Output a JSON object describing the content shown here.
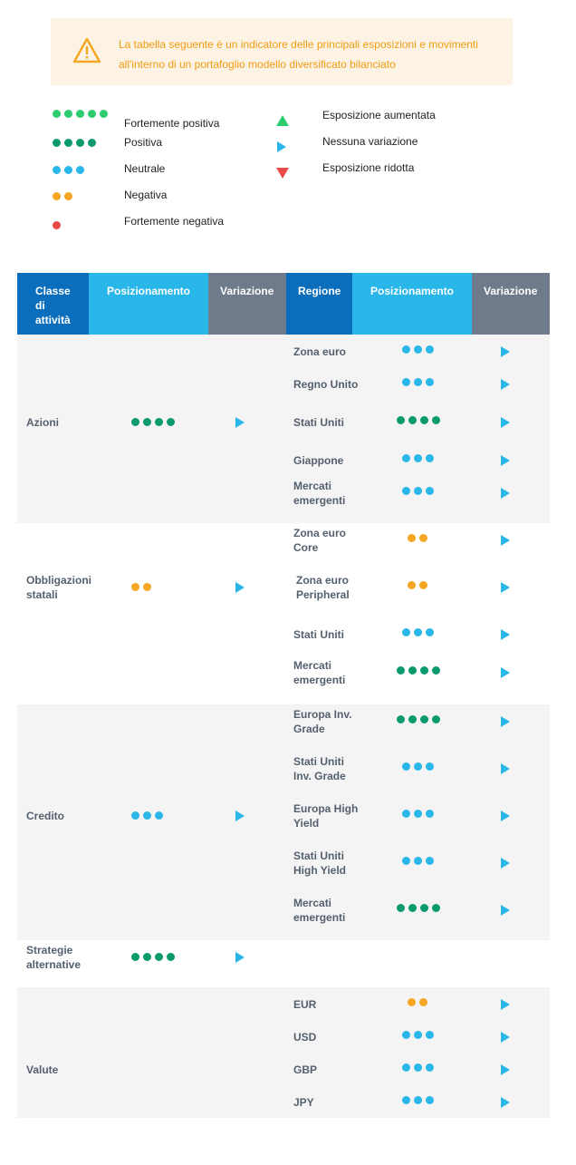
{
  "notice": {
    "icon": "warning-icon",
    "text": "La tabella seguente è un indicatore delle principali esposizioni e movimenti all'interno di un portafoglio modello diversificato bilanciato",
    "color": "#f39c12"
  },
  "colors": {
    "strong_positive": "#2ecc71",
    "positive": "#0a9a6e",
    "neutral": "#29b6e8",
    "negative": "#f5a623",
    "strong_negative": "#e84a4a"
  },
  "legend": {
    "ratings": [
      {
        "label": "Fortemente positiva",
        "dots": 5,
        "color": "strong_positive"
      },
      {
        "label": "Positiva",
        "dots": 4,
        "color": "positive"
      },
      {
        "label": "Neutrale",
        "dots": 3,
        "color": "neutral"
      },
      {
        "label": "Negativa",
        "dots": 2,
        "color": "negative"
      },
      {
        "label": "Fortemente negativa",
        "dots": 1,
        "color": "strong_negative"
      }
    ],
    "changes": [
      {
        "label": "Esposizione aumentata",
        "icon": "triangle-up-icon"
      },
      {
        "label": "Nessuna variazione",
        "icon": "triangle-right-icon"
      },
      {
        "label": "Esposizione ridotta",
        "icon": "triangle-down-icon"
      }
    ]
  },
  "table": {
    "headers": {
      "asset_class": "Classe di attività",
      "positioning": "Posizionamento",
      "change": "Variazione",
      "region": "Regione",
      "region_positioning": "Posizionamento",
      "region_change": "Variazione"
    },
    "header_colors": {
      "dark": "#0a6ebd",
      "light": "#29b6e8",
      "grey": "#6f7b8a"
    },
    "groups": [
      {
        "asset_class": "Azioni",
        "dots": 4,
        "color": "positive",
        "change": "triangle-right-icon",
        "regions": [
          {
            "name": "Zona euro",
            "dots": 3,
            "color": "neutral"
          },
          {
            "name": "Regno Unito",
            "dots": 3,
            "color": "neutral"
          },
          {
            "name": "Stati Uniti",
            "dots": 4,
            "color": "positive"
          },
          {
            "name": "Giappone",
            "dots": 3,
            "color": "neutral"
          },
          {
            "name": "Mercati emergenti",
            "dots": 3,
            "color": "neutral"
          }
        ]
      },
      {
        "asset_class": "Obbligazioni statali",
        "dots": 2,
        "color": "negative",
        "change": "triangle-right-icon",
        "regions": [
          {
            "name": "Zona euro Core",
            "dots": 2,
            "color": "negative"
          },
          {
            "name": "Zona euro Peripheral",
            "dots": 2,
            "color": "negative"
          },
          {
            "name": "Stati Uniti",
            "dots": 3,
            "color": "neutral"
          },
          {
            "name": "Mercati emergenti",
            "dots": 4,
            "color": "positive"
          }
        ]
      },
      {
        "asset_class": "Credito",
        "dots": 3,
        "color": "neutral",
        "change": "triangle-right-icon",
        "regions": [
          {
            "name": "Europa Inv. Grade",
            "dots": 4,
            "color": "positive"
          },
          {
            "name": "Stati Uniti Inv. Grade",
            "dots": 3,
            "color": "neutral"
          },
          {
            "name": "Europa High Yield",
            "dots": 3,
            "color": "neutral"
          },
          {
            "name": "Stati Uniti High Yield",
            "dots": 3,
            "color": "neutral"
          },
          {
            "name": "Mercati emergenti",
            "dots": 4,
            "color": "positive"
          }
        ]
      },
      {
        "asset_class": "Strategie alternative",
        "dots": 4,
        "color": "positive",
        "change": "triangle-right-icon",
        "regions": []
      },
      {
        "asset_class": "Valute",
        "dots": null,
        "color": null,
        "change": null,
        "regions": [
          {
            "name": "EUR",
            "dots": 2,
            "color": "negative"
          },
          {
            "name": "USD",
            "dots": 3,
            "color": "neutral"
          },
          {
            "name": "GBP",
            "dots": 3,
            "color": "neutral"
          },
          {
            "name": "JPY",
            "dots": 3,
            "color": "neutral"
          }
        ]
      }
    ]
  }
}
